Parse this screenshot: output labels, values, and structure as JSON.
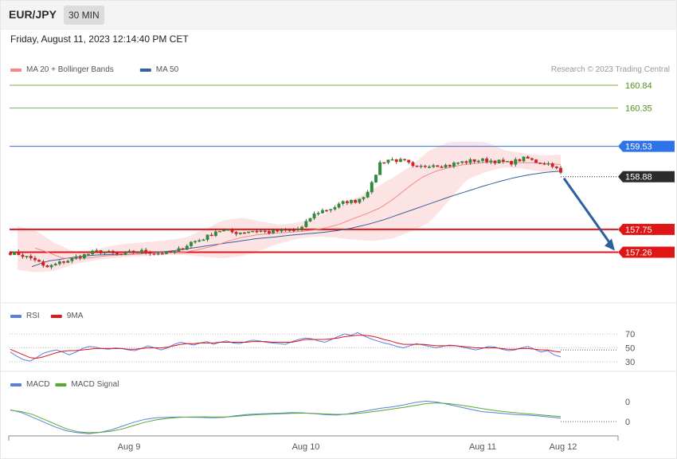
{
  "header": {
    "symbol": "EUR/JPY",
    "timeframe": "30 MIN"
  },
  "date_text": "Friday, August 11, 2023 12:14:40 PM CET",
  "copyright": "Research © 2023 Trading Central",
  "colors": {
    "up": "#2e8b3a",
    "down": "#d62020",
    "ma20": "#f08a8a",
    "ma50": "#3a5f9e",
    "band": "#fde4e4",
    "resistance": "#7bb24a",
    "pivot": "#2f73e8",
    "support": "#e01616",
    "arrow": "#2c5f9e",
    "rsi": "#5b7fe0",
    "rsi_ma": "#e01616",
    "macd": "#5b7fe0",
    "macd_signal": "#58a92e"
  },
  "chart_data": [
    {
      "type": "candlestick",
      "title": "",
      "legend": [
        {
          "name": "MA 20 + Bollinger Bands",
          "color": "#f08a8a"
        },
        {
          "name": "MA 50",
          "color": "#3a5f9e"
        }
      ],
      "x_ticks": [
        "Aug 9",
        "Aug 10",
        "Aug 11",
        "Aug 12"
      ],
      "ylim": [
        156.7,
        161.2
      ],
      "levels": [
        {
          "value": 160.84,
          "label": "160.84",
          "kind": "resistance"
        },
        {
          "value": 160.35,
          "label": "160.35",
          "kind": "resistance"
        },
        {
          "value": 159.53,
          "label": "159.53",
          "kind": "pivot"
        },
        {
          "value": 158.88,
          "label": "158.88",
          "kind": "last"
        },
        {
          "value": 157.75,
          "label": "157.75",
          "kind": "support"
        },
        {
          "value": 157.26,
          "label": "157.26",
          "kind": "support"
        }
      ],
      "close_path": [
        157.25,
        157.22,
        157.15,
        157.1,
        156.92,
        156.98,
        157.05,
        157.1,
        157.17,
        157.22,
        157.27,
        157.27,
        157.22,
        157.2,
        157.26,
        157.28,
        157.27,
        157.24,
        157.24,
        157.25,
        157.35,
        157.47,
        157.52,
        157.6,
        157.73,
        157.72,
        157.68,
        157.69,
        157.72,
        157.72,
        157.69,
        157.71,
        157.72,
        157.73,
        157.79,
        158.03,
        158.14,
        158.18,
        158.25,
        158.35,
        158.35,
        158.45,
        158.7,
        159.18,
        159.25,
        159.23,
        159.2,
        159.05,
        159.1,
        159.15,
        159.12,
        159.12,
        159.18,
        159.2,
        159.23,
        159.23,
        159.22,
        159.2,
        159.17,
        159.23,
        159.28,
        159.2,
        159.18,
        159.14,
        158.95
      ],
      "ma20_path": [
        157.35,
        157.25,
        157.13,
        157.12,
        157.14,
        157.18,
        157.2,
        157.21,
        157.23,
        157.25,
        157.25,
        157.27,
        157.33,
        157.4,
        157.5,
        157.58,
        157.63,
        157.66,
        157.68,
        157.7,
        157.73,
        157.78,
        157.86,
        157.98,
        158.09,
        158.22,
        158.42,
        158.66,
        158.87,
        159.0,
        159.08,
        159.14,
        159.17,
        159.2,
        159.2,
        159.18,
        159.18,
        159.16,
        159.14
      ],
      "band_upper_path": [
        157.82,
        157.72,
        157.45,
        157.28,
        157.3,
        157.4,
        157.45,
        157.48,
        157.52,
        157.58,
        157.75,
        157.95,
        158.0,
        157.92,
        157.85,
        157.9,
        158.02,
        158.18,
        158.4,
        158.62,
        158.85,
        159.1,
        159.45,
        159.62,
        159.63,
        159.62,
        159.45,
        159.38,
        159.34,
        159.35
      ],
      "band_lower_path": [
        156.88,
        156.83,
        156.86,
        157.0,
        157.08,
        157.13,
        157.16,
        157.18,
        157.2,
        157.2,
        157.16,
        157.13,
        157.18,
        157.3,
        157.45,
        157.55,
        157.6,
        157.57,
        157.53,
        157.5,
        157.55,
        157.7,
        157.9,
        158.35,
        158.82,
        158.98,
        159.08,
        159.05,
        158.98,
        159.0
      ],
      "ma50_path": [
        156.95,
        157.07,
        157.12,
        157.17,
        157.2,
        157.21,
        157.21,
        157.23,
        157.26,
        157.3,
        157.35,
        157.4,
        157.45,
        157.5,
        157.55,
        157.58,
        157.62,
        157.65,
        157.68,
        157.72,
        157.78,
        157.86,
        157.96,
        158.08,
        158.2,
        158.32,
        158.44,
        158.55,
        158.66,
        158.76,
        158.85,
        158.92,
        158.97,
        159.0
      ],
      "forecast": {
        "from": 158.88,
        "to": 157.26
      }
    },
    {
      "type": "line",
      "title": "",
      "legend": [
        {
          "name": "RSI",
          "color": "#5b7fe0"
        },
        {
          "name": "9MA",
          "color": "#e01616"
        }
      ],
      "y_ticks": [
        70,
        50,
        30
      ],
      "ylim": [
        20,
        80
      ],
      "series": [
        {
          "name": "RSI",
          "values": [
            44,
            38,
            33,
            31,
            36,
            42,
            45,
            47,
            44,
            40,
            44,
            49,
            52,
            51,
            49,
            48,
            50,
            49,
            47,
            46,
            49,
            53,
            50,
            47,
            50,
            55,
            58,
            56,
            54,
            57,
            59,
            55,
            58,
            60,
            57,
            56,
            59,
            61,
            60,
            58,
            57,
            56,
            55,
            59,
            62,
            64,
            63,
            60,
            58,
            62,
            66,
            70,
            68,
            72,
            67,
            63,
            60,
            57,
            55,
            52,
            50,
            53,
            56,
            54,
            52,
            50,
            52,
            54,
            53,
            51,
            49,
            47,
            49,
            52,
            51,
            48,
            46,
            47,
            50,
            52,
            48,
            44,
            46,
            40,
            37
          ]
        },
        {
          "name": "9MA",
          "values": [
            48,
            44,
            40,
            36,
            35,
            37,
            40,
            43,
            45,
            46,
            46,
            47,
            48,
            49,
            49,
            49,
            49,
            49,
            48,
            48,
            49,
            50,
            50,
            50,
            51,
            53,
            55,
            56,
            56,
            57,
            57,
            57,
            58,
            58,
            58,
            58,
            58,
            59,
            59,
            59,
            58,
            58,
            58,
            58,
            60,
            62,
            62,
            62,
            62,
            63,
            64,
            66,
            67,
            68,
            68,
            67,
            65,
            62,
            60,
            57,
            55,
            55,
            55,
            55,
            54,
            53,
            53,
            53,
            53,
            52,
            51,
            50,
            50,
            50,
            50,
            49,
            48,
            48,
            49,
            49,
            48,
            47,
            47,
            45,
            44
          ]
        }
      ]
    },
    {
      "type": "line",
      "title": "",
      "legend": [
        {
          "name": "MACD",
          "color": "#5b7fe0"
        },
        {
          "name": "MACD Signal",
          "color": "#58a92e"
        }
      ],
      "y_ticks": [
        "0",
        "0"
      ],
      "ylim": [
        -1.2,
        1.0
      ],
      "series": [
        {
          "name": "MACD",
          "values": [
            0.2,
            0.05,
            -0.2,
            -0.45,
            -0.7,
            -0.9,
            -1.0,
            -1.05,
            -0.98,
            -0.85,
            -0.65,
            -0.45,
            -0.3,
            -0.22,
            -0.2,
            -0.18,
            -0.19,
            -0.2,
            -0.22,
            -0.2,
            -0.12,
            -0.05,
            -0.02,
            0.0,
            0.02,
            0.05,
            0.04,
            0.0,
            -0.05,
            -0.08,
            -0.02,
            0.08,
            0.18,
            0.28,
            0.35,
            0.45,
            0.58,
            0.65,
            0.6,
            0.48,
            0.35,
            0.22,
            0.1,
            0.05,
            0.0,
            -0.05,
            -0.08,
            -0.12,
            -0.18,
            -0.24
          ]
        },
        {
          "name": "MACD Signal",
          "values": [
            0.18,
            0.1,
            -0.05,
            -0.3,
            -0.55,
            -0.8,
            -0.95,
            -1.0,
            -0.98,
            -0.92,
            -0.8,
            -0.62,
            -0.45,
            -0.33,
            -0.25,
            -0.2,
            -0.18,
            -0.17,
            -0.18,
            -0.18,
            -0.15,
            -0.1,
            -0.06,
            -0.03,
            -0.01,
            0.01,
            0.02,
            0.01,
            -0.02,
            -0.04,
            -0.03,
            0.01,
            0.08,
            0.16,
            0.24,
            0.32,
            0.42,
            0.52,
            0.56,
            0.52,
            0.45,
            0.36,
            0.26,
            0.17,
            0.1,
            0.04,
            -0.01,
            -0.06,
            -0.11,
            -0.16
          ]
        }
      ]
    }
  ]
}
